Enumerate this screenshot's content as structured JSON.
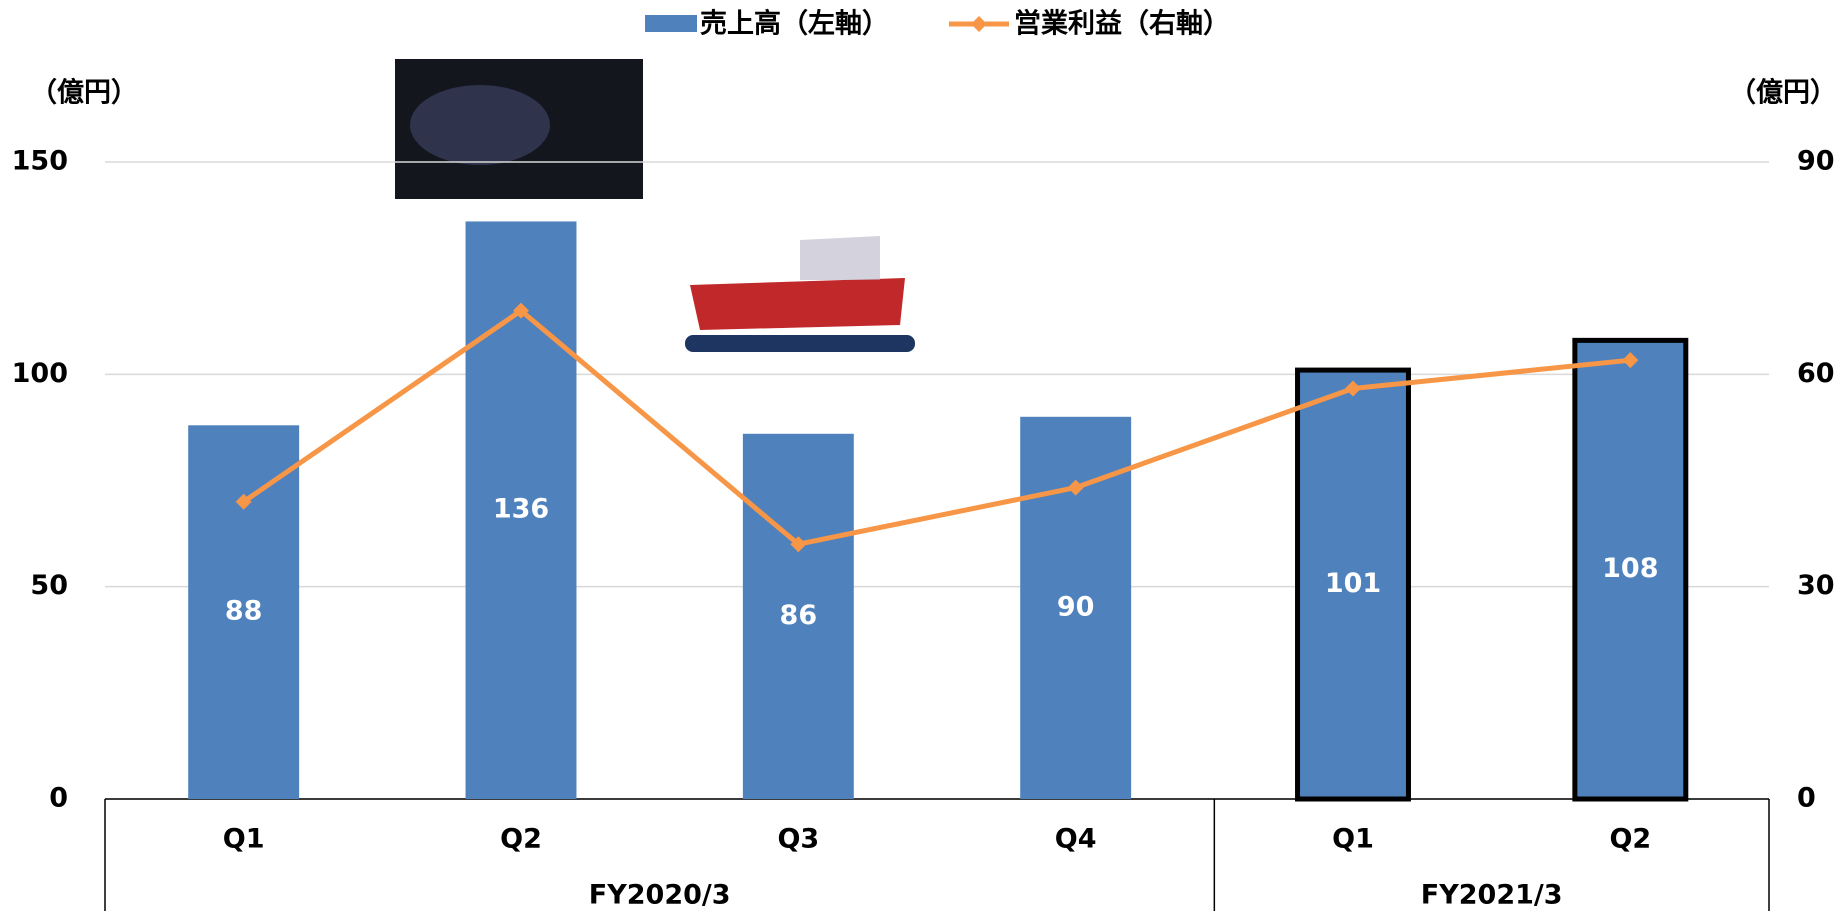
{
  "chart_data": {
    "type": "bar_line",
    "legend_position": "top",
    "y_unit_label": "（億円）",
    "y2_unit_label": "（億円）",
    "categories": [
      "Q1",
      "Q2",
      "Q3",
      "Q4",
      "Q1",
      "Q2"
    ],
    "groups": [
      {
        "label": "FY2020/3",
        "count": 4
      },
      {
        "label": "FY2021/3",
        "count": 2
      }
    ],
    "series": [
      {
        "name": "売上高（左軸）",
        "type": "bar",
        "color": "#4f81bd",
        "values": [
          88,
          136,
          86,
          90,
          101,
          108
        ],
        "edge_colors": [
          null,
          null,
          null,
          null,
          "#000000",
          "#000000"
        ]
      },
      {
        "name": "営業利益（右軸）",
        "type": "line",
        "axis": "y2",
        "color": "#f79646",
        "values": [
          42,
          69,
          36,
          44,
          58,
          62
        ]
      }
    ],
    "ylim": [
      0,
      150
    ],
    "yticks": [
      0,
      50,
      100,
      150
    ],
    "y2lim": [
      0,
      90
    ],
    "y2ticks": [
      0,
      30,
      60,
      90
    ],
    "grid": true
  }
}
